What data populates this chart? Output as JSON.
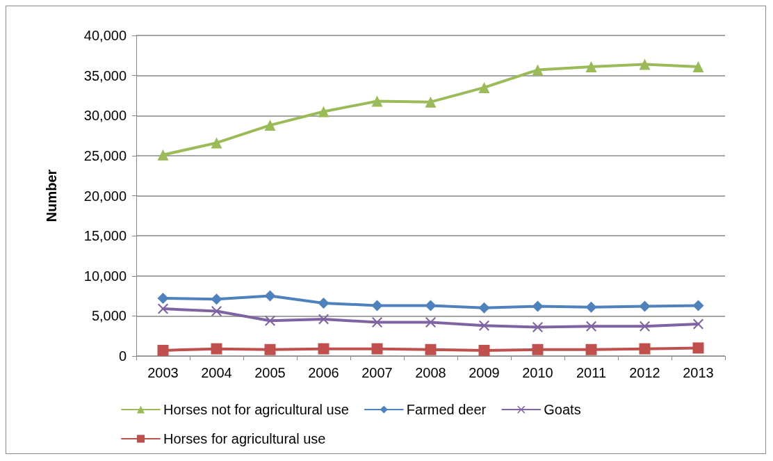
{
  "chart_data": {
    "type": "line",
    "ylabel": "Number",
    "categories": [
      "2003",
      "2004",
      "2005",
      "2006",
      "2007",
      "2008",
      "2009",
      "2010",
      "2011",
      "2012",
      "2013"
    ],
    "series": [
      {
        "name": "Horses not for agricultural use",
        "color": "#9bbb59",
        "marker": "triangle",
        "values": [
          25100,
          26600,
          28800,
          30500,
          31800,
          31700,
          33500,
          35700,
          36100,
          36400,
          36100
        ]
      },
      {
        "name": "Farmed deer",
        "color": "#4f81bd",
        "marker": "diamond",
        "values": [
          7200,
          7100,
          7500,
          6600,
          6300,
          6300,
          6000,
          6200,
          6100,
          6200,
          6300
        ]
      },
      {
        "name": "Goats",
        "color": "#8064a2",
        "marker": "cross",
        "values": [
          5900,
          5600,
          4400,
          4600,
          4200,
          4200,
          3800,
          3600,
          3700,
          3700,
          4000
        ]
      },
      {
        "name": "Horses for agricultural use",
        "color": "#c0504d",
        "marker": "square",
        "values": [
          700,
          900,
          800,
          900,
          900,
          800,
          700,
          800,
          800,
          900,
          1000
        ]
      }
    ],
    "ylim": [
      0,
      40000
    ],
    "yticks": [
      0,
      {
        "value": 5000,
        "label": "5,000"
      },
      {
        "value": 10000,
        "label": "10,000"
      },
      {
        "value": 15000,
        "label": "15,000"
      },
      {
        "value": 20000,
        "label": "20,000"
      },
      {
        "value": 25000,
        "label": "25,000"
      },
      {
        "value": 30000,
        "label": "30,000"
      },
      {
        "value": 35000,
        "label": "35,000"
      },
      {
        "value": 40000,
        "label": "40,000"
      }
    ],
    "grid": "y",
    "legend": "bottom"
  }
}
